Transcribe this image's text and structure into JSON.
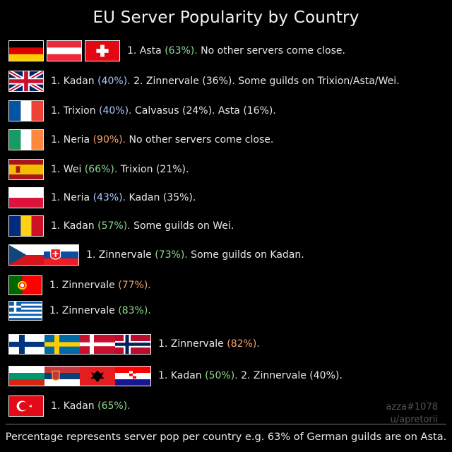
{
  "title": "EU Server Popularity by Country",
  "rows": [
    {
      "rank": "1. Asta",
      "pct": "(63%).",
      "rest": " No other servers come close."
    },
    {
      "rank": "1. Kadan",
      "pct": "(40%).",
      "rest": " 2. Zinnervale (36%). Some  guilds on Trixion/Asta/Wei."
    },
    {
      "rank": "1. Trixion",
      "pct": "(40%).",
      "rest": " Calvasus (24%). Asta (16%)."
    },
    {
      "rank": "1. Neria",
      "pct": "(90%).",
      "rest": " No other servers come close."
    },
    {
      "rank": "1. Wei",
      "pct": "(66%).",
      "rest": " Trixion (21%)."
    },
    {
      "rank": "1. Neria",
      "pct": "(43%).",
      "rest": " Kadan (35%)."
    },
    {
      "rank": "1. Kadan",
      "pct": "(57%).",
      "rest": "  Some guilds on Wei."
    },
    {
      "rank": "1. Zinnervale",
      "pct": "(73%).",
      "rest": " Some guilds on Kadan."
    },
    {
      "rank": "1. Zinnervale",
      "pct": "(77%).",
      "rest": ""
    },
    {
      "rank": "1. Zinnervale",
      "pct": "(83%).",
      "rest": ""
    },
    {
      "rank": "1. Zinnervale",
      "pct": "(82%).",
      "rest": ""
    },
    {
      "rank": "1. Kadan",
      "pct": "(50%).",
      "rest": " 2. Zinnervale (40%)."
    },
    {
      "rank": "1. Kadan",
      "pct": "(65%).",
      "rest": ""
    }
  ],
  "flag_icons": [
    [
      "germany-flag-icon",
      "austria-flag-icon",
      "switzerland-flag-icon"
    ],
    [
      "uk-flag-icon"
    ],
    [
      "france-flag-icon"
    ],
    [
      "ireland-flag-icon"
    ],
    [
      "spain-flag-icon"
    ],
    [
      "poland-flag-icon"
    ],
    [
      "romania-flag-icon"
    ],
    [
      "czechia-flag-icon",
      "slovakia-flag-icon"
    ],
    [
      "portugal-flag-icon"
    ],
    [
      "greece-flag-icon"
    ],
    [
      "finland-flag-icon",
      "sweden-flag-icon",
      "denmark-flag-icon",
      "norway-flag-icon"
    ],
    [
      "bulgaria-flag-icon",
      "serbia-flag-icon",
      "albania-flag-icon",
      "croatia-flag-icon"
    ],
    [
      "turkey-flag-icon"
    ]
  ],
  "colors": {
    "green": "#8fd88f",
    "blue": "#a9c6ff",
    "orange": "#f2a46b"
  },
  "credit": {
    "line1": "azza#1078",
    "line2": "u/apretorii"
  },
  "footer": "Percentage represents server pop per country e.g. 63% of German guilds are on Asta."
}
